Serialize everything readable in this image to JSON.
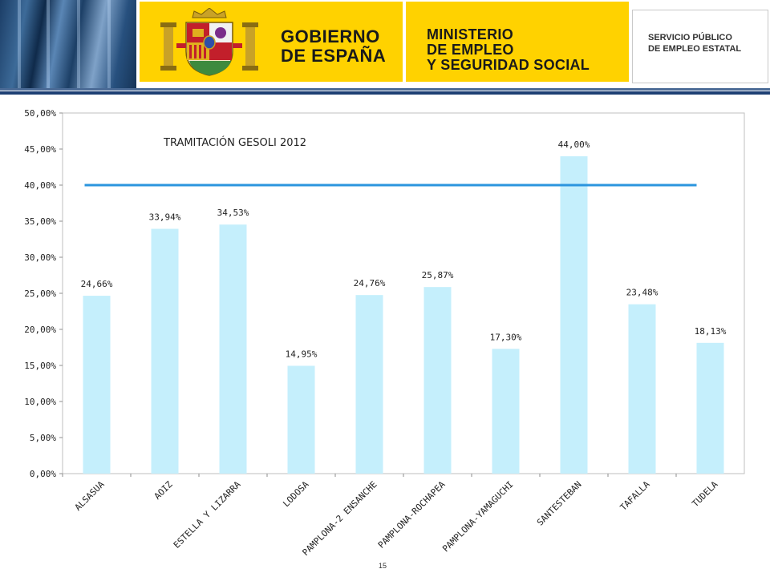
{
  "header": {
    "gobierno_line1": "GOBIERNO",
    "gobierno_line2": "DE ESPAÑA",
    "ministerio_line1": "MINISTERIO",
    "ministerio_line2": "DE EMPLEO",
    "ministerio_line3": "Y SEGURIDAD SOCIAL",
    "servicio_line1": "SERVICIO PÚBLICO",
    "servicio_line2": "DE EMPLEO ESTATAL",
    "brand_yellow": "#ffd200"
  },
  "chart_data": {
    "type": "bar",
    "title": "TRAMITACIÓN GESOLI 2012",
    "categories": [
      "ALSASUA",
      "AOIZ",
      "ESTELLA Y LIZARRA",
      "LODOSA",
      "PAMPLONA-2 ENSANCHE",
      "PAMPLONA-ROCHAPEA",
      "PAMPLONA-YAMAGUCHI",
      "SANTESTEBAN",
      "TAFALLA",
      "TUDELA"
    ],
    "values": [
      24.66,
      33.94,
      34.53,
      14.95,
      24.76,
      25.87,
      17.3,
      44.0,
      23.48,
      18.13
    ],
    "data_labels": [
      "24,66%",
      "33,94%",
      "34,53%",
      "14,95%",
      "24,76%",
      "25,87%",
      "17,30%",
      "44,00%",
      "23,48%",
      "18,13%"
    ],
    "yticks": [
      0,
      5,
      10,
      15,
      20,
      25,
      30,
      35,
      40,
      45,
      50
    ],
    "ytick_labels": [
      "0,00%",
      "5,00%",
      "10,00%",
      "15,00%",
      "20,00%",
      "25,00%",
      "30,00%",
      "35,00%",
      "40,00%",
      "45,00%",
      "50,00%"
    ],
    "ylim": [
      0,
      50
    ],
    "reference_line": 40,
    "bar_color": "#c5effc",
    "line_color": "#2b95de",
    "grid": false,
    "legend": "none"
  },
  "footer": {
    "page_number": "15"
  }
}
